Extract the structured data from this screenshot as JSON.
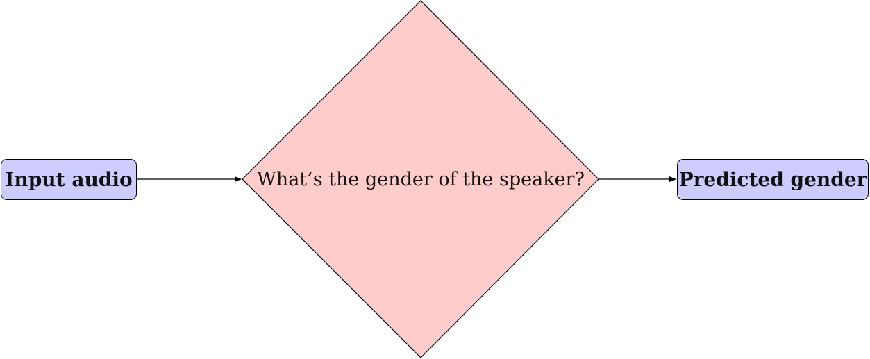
{
  "nodes": {
    "input": {
      "label": "Input audio"
    },
    "decision": {
      "label": "What’s the gender of the speaker?"
    },
    "output": {
      "label": "Predicted gender"
    }
  },
  "colors": {
    "box_fill": "#ccccff",
    "diamond_fill": "#ffcccc",
    "stroke": "#000000"
  }
}
